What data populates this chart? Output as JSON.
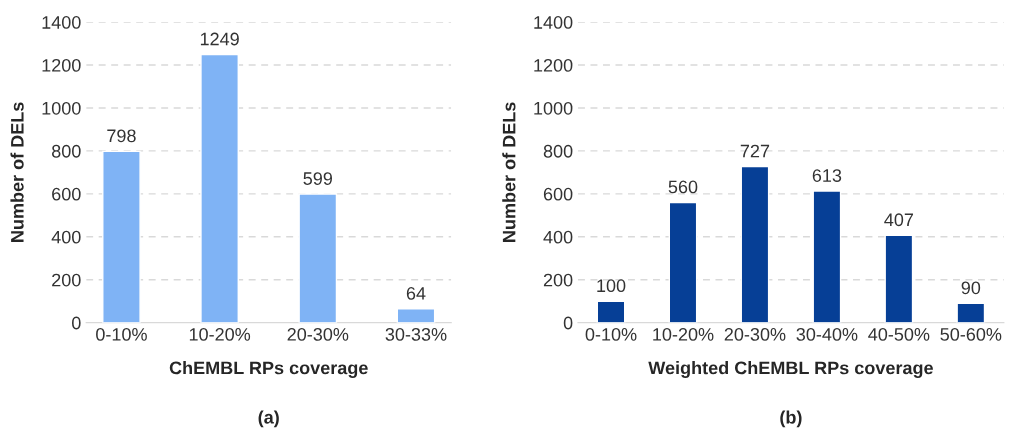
{
  "chart_data": [
    {
      "type": "bar",
      "categories": [
        "0-10%",
        "10-20%",
        "20-30%",
        "30-33%"
      ],
      "values": [
        798,
        1249,
        599,
        64
      ],
      "color": "#7fb3f5",
      "xlabel": "ChEMBL RPs coverage",
      "ylabel": "Number of DELs",
      "ylim": [
        0,
        1400
      ],
      "yticks": [
        0,
        200,
        400,
        600,
        800,
        1000,
        1200,
        1400
      ],
      "grid": "y",
      "data_labels": true,
      "annotations": [
        "(a)"
      ]
    },
    {
      "type": "bar",
      "categories": [
        "0-10%",
        "10-20%",
        "20-30%",
        "30-40%",
        "40-50%",
        "50-60%"
      ],
      "values": [
        100,
        560,
        727,
        613,
        407,
        90
      ],
      "color": "#063f96",
      "xlabel": "Weighted ChEMBL RPs coverage",
      "ylabel": "Number of DELs",
      "ylim": [
        0,
        1400
      ],
      "yticks": [
        0,
        200,
        400,
        600,
        800,
        1000,
        1200,
        1400
      ],
      "grid": "y",
      "data_labels": true,
      "annotations": [
        "(b)"
      ]
    }
  ]
}
